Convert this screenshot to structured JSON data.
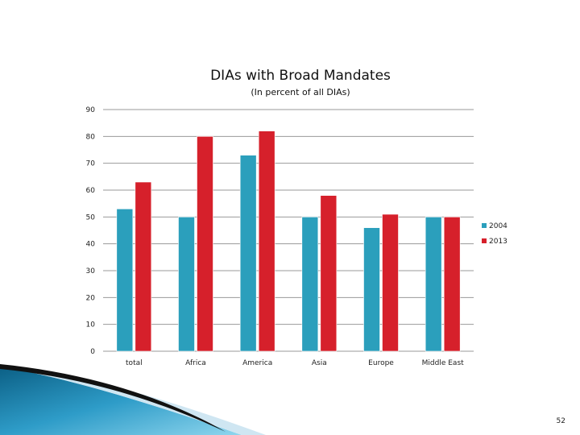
{
  "chart_data": {
    "type": "bar",
    "title": "DIAs with Broad Mandates",
    "subtitle": "(In percent of all DIAs)",
    "categories": [
      "total",
      "Africa",
      "America",
      "Asia",
      "Europe",
      "Middle East"
    ],
    "series": [
      {
        "name": "2004",
        "values": [
          53,
          50,
          73,
          50,
          46,
          50
        ],
        "color": "#2b9fbc"
      },
      {
        "name": "2013",
        "values": [
          63,
          80,
          82,
          58,
          51,
          50
        ],
        "color": "#d6202b"
      }
    ],
    "ylim": [
      0,
      90
    ],
    "yticks": [
      0,
      10,
      20,
      30,
      40,
      50,
      60,
      70,
      80,
      90
    ],
    "grid": true,
    "legend_position": "right"
  },
  "slide_number": "52",
  "colors": {
    "accent_dark": "#0d6f96",
    "accent_light": "#5cc0e0"
  }
}
